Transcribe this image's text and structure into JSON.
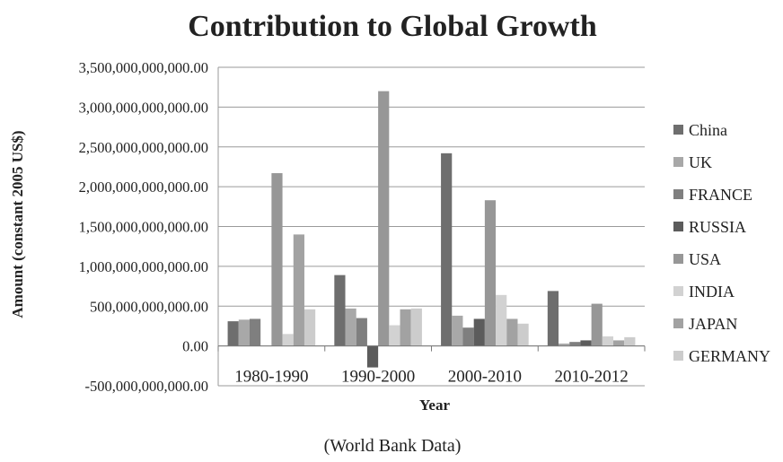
{
  "chart_data": {
    "type": "bar",
    "title": "Contribution to Global Growth",
    "xlabel": "Year",
    "ylabel": "Amount (constant 2005 US$)",
    "source": "(World Bank Data)",
    "categories": [
      "1980-1990",
      "1990-2000",
      "2000-2010",
      "2010-2012"
    ],
    "ylim": [
      -500000000000,
      3500000000000
    ],
    "yticks": [
      {
        "value": 3500000000000,
        "label": "3,500,000,000,000.00"
      },
      {
        "value": 3000000000000,
        "label": "3,000,000,000,000.00"
      },
      {
        "value": 2500000000000,
        "label": "2,500,000,000,000.00"
      },
      {
        "value": 2000000000000,
        "label": "2,000,000,000,000.00"
      },
      {
        "value": 1500000000000,
        "label": "1,500,000,000,000.00"
      },
      {
        "value": 1000000000000,
        "label": "1,000,000,000,000.00"
      },
      {
        "value": 500000000000,
        "label": "500,000,000,000.00"
      },
      {
        "value": 0,
        "label": "0.00"
      },
      {
        "value": -500000000000,
        "label": "-500,000,000,000.00"
      }
    ],
    "grid": true,
    "legend_position": "right",
    "series": [
      {
        "name": "China",
        "color": "#6e6e6e",
        "values": [
          310000000000,
          890000000000,
          2420000000000,
          690000000000
        ]
      },
      {
        "name": "UK",
        "color": "#a8a8a8",
        "values": [
          330000000000,
          470000000000,
          380000000000,
          30000000000
        ]
      },
      {
        "name": "FRANCE",
        "color": "#7f7f7f",
        "values": [
          340000000000,
          350000000000,
          230000000000,
          50000000000
        ]
      },
      {
        "name": "RUSSIA",
        "color": "#5c5c5c",
        "values": [
          0,
          -270000000000,
          340000000000,
          70000000000
        ]
      },
      {
        "name": "USA",
        "color": "#979797",
        "values": [
          2170000000000,
          3200000000000,
          1830000000000,
          530000000000
        ]
      },
      {
        "name": "INDIA",
        "color": "#d2d2d2",
        "values": [
          150000000000,
          260000000000,
          640000000000,
          120000000000
        ]
      },
      {
        "name": "JAPAN",
        "color": "#a2a2a2",
        "values": [
          1400000000000,
          460000000000,
          340000000000,
          70000000000
        ]
      },
      {
        "name": "GERMANY",
        "color": "#cccccc",
        "values": [
          460000000000,
          470000000000,
          280000000000,
          110000000000
        ]
      }
    ]
  }
}
